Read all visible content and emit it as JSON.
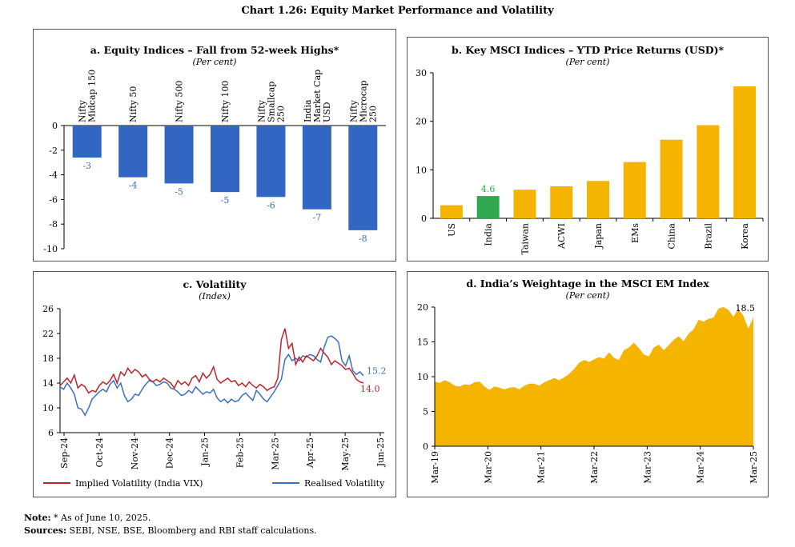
{
  "title": "Chart 1.26: Equity Market Performance and Volatility",
  "chart_data": [
    {
      "type": "bar",
      "title": "a. Equity Indices – Fall from 52-week Highs*",
      "subtitle": "(Per cent)",
      "categories": [
        [
          "Nifty",
          "Midcap 150"
        ],
        [
          "Nifty 50"
        ],
        [
          "Nifty 500"
        ],
        [
          "Nifty 100"
        ],
        [
          "Nifty",
          "Smallcap",
          "250"
        ],
        [
          "India",
          "Market Cap",
          "USD"
        ],
        [
          "Nifty",
          "Microcap",
          "250"
        ]
      ],
      "values": [
        -2.6,
        -4.2,
        -4.7,
        -5.4,
        -5.8,
        -6.8,
        -8.5
      ],
      "data_labels": [
        "-3",
        "-4",
        "-5",
        "-5",
        "-6",
        "-7",
        "-8"
      ],
      "ylim": [
        -10,
        0
      ],
      "yticks": [
        "0",
        "-2",
        "-4",
        "-6",
        "-8",
        "-10"
      ],
      "colors": {
        "bar": "#3366c2",
        "label": "#3b6fbf"
      }
    },
    {
      "type": "bar",
      "title": "b. Key MSCI Indices – YTD Price Returns (USD)*",
      "subtitle": "(Per cent)",
      "categories": [
        "US",
        "India",
        "Taiwan",
        "ACWI",
        "Japan",
        "EMs",
        "China",
        "Brazil",
        "Korea"
      ],
      "values": [
        2.7,
        4.6,
        5.9,
        6.6,
        7.7,
        11.6,
        16.2,
        19.2,
        27.2
      ],
      "highlight_label": "4.6",
      "ylim": [
        0,
        30
      ],
      "yticks": [
        "0",
        "10",
        "20",
        "30"
      ],
      "colors": {
        "bar": "#f5b400",
        "highlight": "#2fa84f"
      }
    },
    {
      "type": "line",
      "title": "c. Volatility",
      "subtitle": "(Index)",
      "xticks": [
        "Sep-24",
        "Oct-24",
        "Nov-24",
        "Dec-24",
        "Jan-25",
        "Feb-25",
        "Mar-25",
        "Apr-25",
        "May-25",
        "Jun-25"
      ],
      "ylim": [
        6,
        26
      ],
      "yticks": [
        "6",
        "10",
        "14",
        "18",
        "22",
        "26"
      ],
      "series": [
        {
          "name": "Implied Volatility (India VIX)",
          "color": "#c0232c",
          "end_label": "14.0",
          "values": [
            13.6,
            14.2,
            14.8,
            14.0,
            15.3,
            13.2,
            13.8,
            13.4,
            12.4,
            12.8,
            12.6,
            13.6,
            14.2,
            13.8,
            14.4,
            15.4,
            14.0,
            15.8,
            15.2,
            16.4,
            15.6,
            16.2,
            15.8,
            15.0,
            15.4,
            14.6,
            14.2,
            14.6,
            14.2,
            14.8,
            14.4,
            14.0,
            13.2,
            14.4,
            13.8,
            14.2,
            13.6,
            14.8,
            15.2,
            14.2,
            15.6,
            14.8,
            15.4,
            16.6,
            14.6,
            14.0,
            14.4,
            14.8,
            14.2,
            14.4,
            13.6,
            14.0,
            13.4,
            14.2,
            13.6,
            13.2,
            13.8,
            13.4,
            12.8,
            13.2,
            13.4,
            14.8,
            21.0,
            22.8,
            19.6,
            20.4,
            17.0,
            18.2,
            17.4,
            18.4,
            18.0,
            17.6,
            18.4,
            19.6,
            18.8,
            18.2,
            17.0,
            17.6,
            17.2,
            16.8,
            16.2,
            16.4,
            15.6,
            14.6,
            14.2,
            14.0
          ]
        },
        {
          "name": "Realised Volatility",
          "color": "#3b6fbf",
          "end_label": "15.2",
          "values": [
            13.4,
            13.0,
            14.0,
            13.2,
            12.2,
            10.0,
            9.8,
            8.8,
            10.0,
            11.4,
            12.0,
            12.6,
            13.0,
            12.6,
            13.8,
            14.4,
            13.2,
            14.0,
            12.0,
            11.0,
            11.4,
            12.2,
            12.0,
            13.0,
            13.8,
            14.4,
            14.2,
            13.6,
            13.8,
            14.2,
            14.0,
            13.2,
            13.0,
            12.6,
            12.0,
            12.2,
            12.8,
            12.4,
            13.4,
            12.8,
            12.2,
            12.6,
            12.4,
            13.0,
            11.6,
            11.0,
            11.4,
            10.8,
            11.4,
            11.0,
            11.2,
            12.0,
            12.4,
            11.8,
            11.2,
            12.8,
            12.2,
            11.4,
            11.0,
            11.8,
            12.6,
            13.6,
            14.6,
            17.8,
            18.6,
            17.6,
            18.0,
            17.6,
            18.4,
            18.2,
            18.6,
            18.4,
            17.8,
            17.4,
            19.8,
            21.4,
            21.6,
            21.2,
            20.6,
            17.6,
            16.8,
            18.4,
            16.0,
            15.4,
            15.8,
            15.2
          ]
        }
      ],
      "legend": "bottom"
    },
    {
      "type": "area",
      "title": "d. India’s Weightage in the MSCI EM Index",
      "subtitle": "(Per cent)",
      "xticks": [
        "Mar-19",
        "Mar-20",
        "Mar-21",
        "Mar-22",
        "Mar-23",
        "Mar-24",
        "Mar-25"
      ],
      "ylim": [
        0,
        20
      ],
      "yticks": [
        "0",
        "5",
        "10",
        "15",
        "20"
      ],
      "end_label": "18.5",
      "color": "#f5b400",
      "values": [
        9.3,
        9.1,
        9.5,
        9.2,
        8.7,
        8.6,
        8.9,
        8.8,
        9.2,
        9.3,
        8.6,
        8.1,
        8.6,
        8.4,
        8.2,
        8.4,
        8.5,
        8.2,
        8.7,
        9.0,
        9.0,
        8.7,
        9.2,
        9.5,
        9.8,
        9.5,
        9.9,
        10.4,
        11.1,
        12.0,
        12.4,
        12.1,
        12.5,
        12.8,
        12.6,
        13.5,
        12.7,
        12.4,
        13.8,
        14.2,
        14.9,
        14.1,
        13.2,
        12.9,
        14.2,
        14.6,
        13.8,
        14.5,
        15.3,
        15.8,
        15.1,
        16.2,
        16.8,
        18.2,
        17.9,
        18.3,
        18.5,
        19.8,
        20.0,
        19.6,
        18.6,
        19.8,
        18.7,
        16.9,
        18.5
      ]
    }
  ],
  "notes": {
    "note_label": "Note:",
    "note_text": "* As of June 10, 2025.",
    "sources_label": "Sources:",
    "sources_text": "SEBI, NSE, BSE, Bloomberg and RBI staff calculations."
  }
}
